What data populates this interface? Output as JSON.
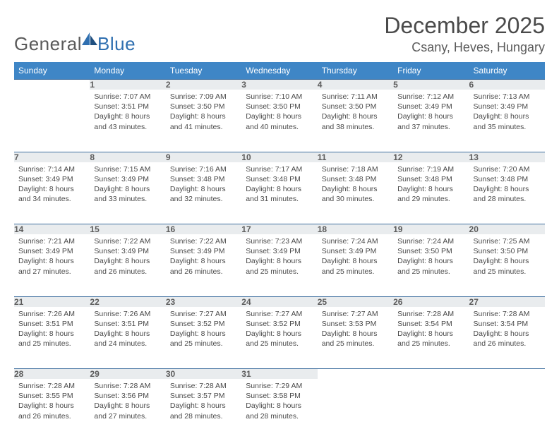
{
  "logo": {
    "word1": "General",
    "word2": "Blue"
  },
  "title": "December 2025",
  "location": "Csany, Heves, Hungary",
  "colors": {
    "header_bg": "#3f86c6",
    "header_text": "#ffffff",
    "daynum_bg": "#e9ecee",
    "week_border": "#3f6f9f",
    "text": "#4a4a4a",
    "logo_blue": "#2f6fb0"
  },
  "weekdays": [
    "Sunday",
    "Monday",
    "Tuesday",
    "Wednesday",
    "Thursday",
    "Friday",
    "Saturday"
  ],
  "weeks": [
    [
      null,
      {
        "n": "1",
        "sunrise": "Sunrise: 7:07 AM",
        "sunset": "Sunset: 3:51 PM",
        "d1": "Daylight: 8 hours",
        "d2": "and 43 minutes."
      },
      {
        "n": "2",
        "sunrise": "Sunrise: 7:09 AM",
        "sunset": "Sunset: 3:50 PM",
        "d1": "Daylight: 8 hours",
        "d2": "and 41 minutes."
      },
      {
        "n": "3",
        "sunrise": "Sunrise: 7:10 AM",
        "sunset": "Sunset: 3:50 PM",
        "d1": "Daylight: 8 hours",
        "d2": "and 40 minutes."
      },
      {
        "n": "4",
        "sunrise": "Sunrise: 7:11 AM",
        "sunset": "Sunset: 3:50 PM",
        "d1": "Daylight: 8 hours",
        "d2": "and 38 minutes."
      },
      {
        "n": "5",
        "sunrise": "Sunrise: 7:12 AM",
        "sunset": "Sunset: 3:49 PM",
        "d1": "Daylight: 8 hours",
        "d2": "and 37 minutes."
      },
      {
        "n": "6",
        "sunrise": "Sunrise: 7:13 AM",
        "sunset": "Sunset: 3:49 PM",
        "d1": "Daylight: 8 hours",
        "d2": "and 35 minutes."
      }
    ],
    [
      {
        "n": "7",
        "sunrise": "Sunrise: 7:14 AM",
        "sunset": "Sunset: 3:49 PM",
        "d1": "Daylight: 8 hours",
        "d2": "and 34 minutes."
      },
      {
        "n": "8",
        "sunrise": "Sunrise: 7:15 AM",
        "sunset": "Sunset: 3:49 PM",
        "d1": "Daylight: 8 hours",
        "d2": "and 33 minutes."
      },
      {
        "n": "9",
        "sunrise": "Sunrise: 7:16 AM",
        "sunset": "Sunset: 3:48 PM",
        "d1": "Daylight: 8 hours",
        "d2": "and 32 minutes."
      },
      {
        "n": "10",
        "sunrise": "Sunrise: 7:17 AM",
        "sunset": "Sunset: 3:48 PM",
        "d1": "Daylight: 8 hours",
        "d2": "and 31 minutes."
      },
      {
        "n": "11",
        "sunrise": "Sunrise: 7:18 AM",
        "sunset": "Sunset: 3:48 PM",
        "d1": "Daylight: 8 hours",
        "d2": "and 30 minutes."
      },
      {
        "n": "12",
        "sunrise": "Sunrise: 7:19 AM",
        "sunset": "Sunset: 3:48 PM",
        "d1": "Daylight: 8 hours",
        "d2": "and 29 minutes."
      },
      {
        "n": "13",
        "sunrise": "Sunrise: 7:20 AM",
        "sunset": "Sunset: 3:48 PM",
        "d1": "Daylight: 8 hours",
        "d2": "and 28 minutes."
      }
    ],
    [
      {
        "n": "14",
        "sunrise": "Sunrise: 7:21 AM",
        "sunset": "Sunset: 3:49 PM",
        "d1": "Daylight: 8 hours",
        "d2": "and 27 minutes."
      },
      {
        "n": "15",
        "sunrise": "Sunrise: 7:22 AM",
        "sunset": "Sunset: 3:49 PM",
        "d1": "Daylight: 8 hours",
        "d2": "and 26 minutes."
      },
      {
        "n": "16",
        "sunrise": "Sunrise: 7:22 AM",
        "sunset": "Sunset: 3:49 PM",
        "d1": "Daylight: 8 hours",
        "d2": "and 26 minutes."
      },
      {
        "n": "17",
        "sunrise": "Sunrise: 7:23 AM",
        "sunset": "Sunset: 3:49 PM",
        "d1": "Daylight: 8 hours",
        "d2": "and 25 minutes."
      },
      {
        "n": "18",
        "sunrise": "Sunrise: 7:24 AM",
        "sunset": "Sunset: 3:49 PM",
        "d1": "Daylight: 8 hours",
        "d2": "and 25 minutes."
      },
      {
        "n": "19",
        "sunrise": "Sunrise: 7:24 AM",
        "sunset": "Sunset: 3:50 PM",
        "d1": "Daylight: 8 hours",
        "d2": "and 25 minutes."
      },
      {
        "n": "20",
        "sunrise": "Sunrise: 7:25 AM",
        "sunset": "Sunset: 3:50 PM",
        "d1": "Daylight: 8 hours",
        "d2": "and 25 minutes."
      }
    ],
    [
      {
        "n": "21",
        "sunrise": "Sunrise: 7:26 AM",
        "sunset": "Sunset: 3:51 PM",
        "d1": "Daylight: 8 hours",
        "d2": "and 25 minutes."
      },
      {
        "n": "22",
        "sunrise": "Sunrise: 7:26 AM",
        "sunset": "Sunset: 3:51 PM",
        "d1": "Daylight: 8 hours",
        "d2": "and 24 minutes."
      },
      {
        "n": "23",
        "sunrise": "Sunrise: 7:27 AM",
        "sunset": "Sunset: 3:52 PM",
        "d1": "Daylight: 8 hours",
        "d2": "and 25 minutes."
      },
      {
        "n": "24",
        "sunrise": "Sunrise: 7:27 AM",
        "sunset": "Sunset: 3:52 PM",
        "d1": "Daylight: 8 hours",
        "d2": "and 25 minutes."
      },
      {
        "n": "25",
        "sunrise": "Sunrise: 7:27 AM",
        "sunset": "Sunset: 3:53 PM",
        "d1": "Daylight: 8 hours",
        "d2": "and 25 minutes."
      },
      {
        "n": "26",
        "sunrise": "Sunrise: 7:28 AM",
        "sunset": "Sunset: 3:54 PM",
        "d1": "Daylight: 8 hours",
        "d2": "and 25 minutes."
      },
      {
        "n": "27",
        "sunrise": "Sunrise: 7:28 AM",
        "sunset": "Sunset: 3:54 PM",
        "d1": "Daylight: 8 hours",
        "d2": "and 26 minutes."
      }
    ],
    [
      {
        "n": "28",
        "sunrise": "Sunrise: 7:28 AM",
        "sunset": "Sunset: 3:55 PM",
        "d1": "Daylight: 8 hours",
        "d2": "and 26 minutes."
      },
      {
        "n": "29",
        "sunrise": "Sunrise: 7:28 AM",
        "sunset": "Sunset: 3:56 PM",
        "d1": "Daylight: 8 hours",
        "d2": "and 27 minutes."
      },
      {
        "n": "30",
        "sunrise": "Sunrise: 7:28 AM",
        "sunset": "Sunset: 3:57 PM",
        "d1": "Daylight: 8 hours",
        "d2": "and 28 minutes."
      },
      {
        "n": "31",
        "sunrise": "Sunrise: 7:29 AM",
        "sunset": "Sunset: 3:58 PM",
        "d1": "Daylight: 8 hours",
        "d2": "and 28 minutes."
      },
      null,
      null,
      null
    ]
  ]
}
